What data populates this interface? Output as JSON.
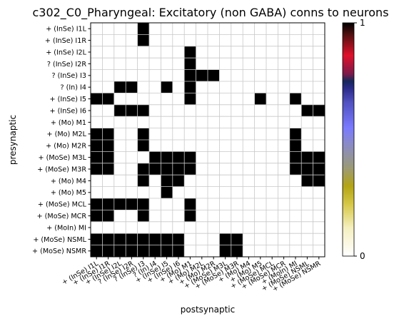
{
  "chart_data": {
    "type": "heatmap",
    "title": "c302_C0_Pharyngeal: Excitatory (non GABA) conns to neurons",
    "xlabel": "postsynaptic",
    "ylabel": "presynaptic",
    "labels": [
      "+ (InSe) I1L",
      "+ (InSe) I1R",
      "+ (InSe) I2L",
      "? (InSe) I2R",
      "? (InSe) I3",
      "? (In) I4",
      "+ (InSe) I5",
      "+ (InSe) I6",
      "+ (Mo) M1",
      "+ (Mo) M2L",
      "+ (Mo) M2R",
      "+ (MoSe) M3L",
      "+ (MoSe) M3R",
      "+ (Mo) M4",
      "+ (Mo) M5",
      "+ (MoSe) MCL",
      "+ (MoSe) MCR",
      "+ (MoIn) MI",
      "+ (MoSe) NSML",
      "+ (MoSe) NSMR"
    ],
    "x_tick_labels": [
      "+ (InSe) I1L",
      "+ (InSe) I1R",
      "+ (InSe) I2L",
      "? (InSe) I2R",
      "? (InSe) I3",
      "? (In) I4",
      "+ (InSe) I5",
      "+ (InSe) I6",
      "+ (Mo) M1",
      "+ (Mo) M2L",
      "+ (Mo) M2R",
      "+ (MoSe) M3L",
      "+ (MoSe) M3R",
      "+ (Mo) M4",
      "+ (Mo) M5",
      "+ (MoSe) MCL",
      "+ (MoSe) MCR",
      "+ (MoIn) MI",
      "+ (MoSe) NSML",
      "+ (MoSe) NSMR"
    ],
    "matrix": [
      [
        0,
        0,
        0,
        0,
        1,
        0,
        0,
        0,
        0,
        0,
        0,
        0,
        0,
        0,
        0,
        0,
        0,
        0,
        0,
        0
      ],
      [
        0,
        0,
        0,
        0,
        1,
        0,
        0,
        0,
        0,
        0,
        0,
        0,
        0,
        0,
        0,
        0,
        0,
        0,
        0,
        0
      ],
      [
        0,
        0,
        0,
        0,
        0,
        0,
        0,
        0,
        1,
        0,
        0,
        0,
        0,
        0,
        0,
        0,
        0,
        0,
        0,
        0
      ],
      [
        0,
        0,
        0,
        0,
        0,
        0,
        0,
        0,
        1,
        0,
        0,
        0,
        0,
        0,
        0,
        0,
        0,
        0,
        0,
        0
      ],
      [
        0,
        0,
        0,
        0,
        0,
        0,
        0,
        0,
        1,
        1,
        1,
        0,
        0,
        0,
        0,
        0,
        0,
        0,
        0,
        0
      ],
      [
        0,
        0,
        1,
        1,
        0,
        0,
        1,
        0,
        1,
        0,
        0,
        0,
        0,
        0,
        0,
        0,
        0,
        0,
        0,
        0
      ],
      [
        1,
        1,
        0,
        0,
        0,
        0,
        0,
        0,
        1,
        0,
        0,
        0,
        0,
        0,
        1,
        0,
        0,
        1,
        0,
        0
      ],
      [
        0,
        0,
        1,
        1,
        1,
        0,
        0,
        0,
        0,
        0,
        0,
        0,
        0,
        0,
        0,
        0,
        0,
        0,
        1,
        1
      ],
      [
        0,
        0,
        0,
        0,
        0,
        0,
        0,
        0,
        0,
        0,
        0,
        0,
        0,
        0,
        0,
        0,
        0,
        0,
        0,
        0
      ],
      [
        1,
        1,
        0,
        0,
        1,
        0,
        0,
        0,
        0,
        0,
        0,
        0,
        0,
        0,
        0,
        0,
        0,
        1,
        0,
        0
      ],
      [
        1,
        1,
        0,
        0,
        1,
        0,
        0,
        0,
        0,
        0,
        0,
        0,
        0,
        0,
        0,
        0,
        0,
        1,
        0,
        0
      ],
      [
        1,
        1,
        0,
        0,
        0,
        1,
        1,
        1,
        1,
        0,
        0,
        0,
        0,
        0,
        0,
        0,
        0,
        1,
        1,
        1
      ],
      [
        1,
        1,
        0,
        0,
        1,
        1,
        1,
        1,
        1,
        0,
        0,
        0,
        0,
        0,
        0,
        0,
        0,
        1,
        1,
        1
      ],
      [
        0,
        0,
        0,
        0,
        1,
        0,
        1,
        1,
        0,
        0,
        0,
        0,
        0,
        0,
        0,
        0,
        0,
        0,
        1,
        1
      ],
      [
        0,
        0,
        0,
        0,
        0,
        0,
        1,
        0,
        0,
        0,
        0,
        0,
        0,
        0,
        0,
        0,
        0,
        0,
        0,
        0
      ],
      [
        1,
        1,
        1,
        1,
        1,
        0,
        0,
        0,
        1,
        0,
        0,
        0,
        0,
        0,
        0,
        0,
        0,
        0,
        0,
        0
      ],
      [
        1,
        1,
        0,
        0,
        1,
        0,
        0,
        0,
        1,
        0,
        0,
        0,
        0,
        0,
        0,
        0,
        0,
        0,
        0,
        0
      ],
      [
        0,
        0,
        0,
        0,
        0,
        0,
        0,
        0,
        0,
        0,
        0,
        0,
        0,
        0,
        0,
        0,
        0,
        0,
        0,
        0
      ],
      [
        1,
        1,
        1,
        1,
        1,
        1,
        1,
        1,
        0,
        0,
        0,
        1,
        1,
        0,
        0,
        0,
        0,
        0,
        0,
        0
      ],
      [
        1,
        1,
        1,
        1,
        1,
        1,
        1,
        1,
        0,
        0,
        0,
        1,
        1,
        0,
        0,
        0,
        0,
        0,
        0,
        0
      ]
    ],
    "zlim": [
      0,
      1
    ],
    "colorbar": {
      "ticks": [
        "0",
        "1"
      ],
      "colormap": "gist_stern_r"
    },
    "colors": {
      "filled": "#000000",
      "empty": "#ffffff",
      "grid": "#c8c8c8"
    }
  }
}
